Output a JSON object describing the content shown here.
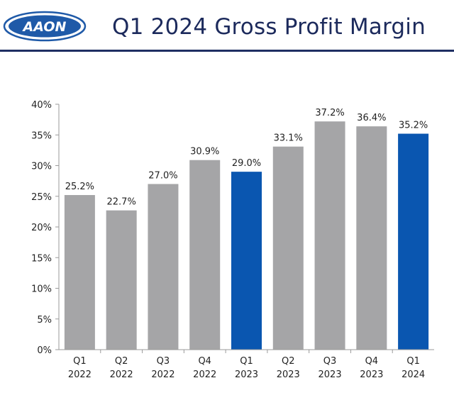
{
  "header": {
    "logo_text": "AAON",
    "title": "Q1 2024 Gross Profit Margin"
  },
  "colors": {
    "bar_gray": "#a5a5a7",
    "bar_highlight": "#0a56b0",
    "brand_navy": "#1c2a5c",
    "logo_blue": "#1f5aa8"
  },
  "chart_data": {
    "type": "bar",
    "categories": [
      [
        "Q1",
        "2022"
      ],
      [
        "Q2",
        "2022"
      ],
      [
        "Q3",
        "2022"
      ],
      [
        "Q4",
        "2022"
      ],
      [
        "Q1",
        "2023"
      ],
      [
        "Q2",
        "2023"
      ],
      [
        "Q3",
        "2023"
      ],
      [
        "Q4",
        "2023"
      ],
      [
        "Q1",
        "2024"
      ]
    ],
    "values": [
      25.2,
      22.7,
      27.0,
      30.9,
      29.0,
      33.1,
      37.2,
      36.4,
      35.2
    ],
    "value_labels": [
      "25.2%",
      "22.7%",
      "27.0%",
      "30.9%",
      "29.0%",
      "33.1%",
      "37.2%",
      "36.4%",
      "35.2%"
    ],
    "highlighted": [
      false,
      false,
      false,
      false,
      true,
      false,
      false,
      false,
      true
    ],
    "ylim": [
      0,
      40
    ],
    "yticks": [
      0,
      5,
      10,
      15,
      20,
      25,
      30,
      35,
      40
    ],
    "ytick_labels": [
      "0%",
      "5%",
      "10%",
      "15%",
      "20%",
      "25%",
      "30%",
      "35%",
      "40%"
    ],
    "grid": false,
    "legend": "none"
  }
}
